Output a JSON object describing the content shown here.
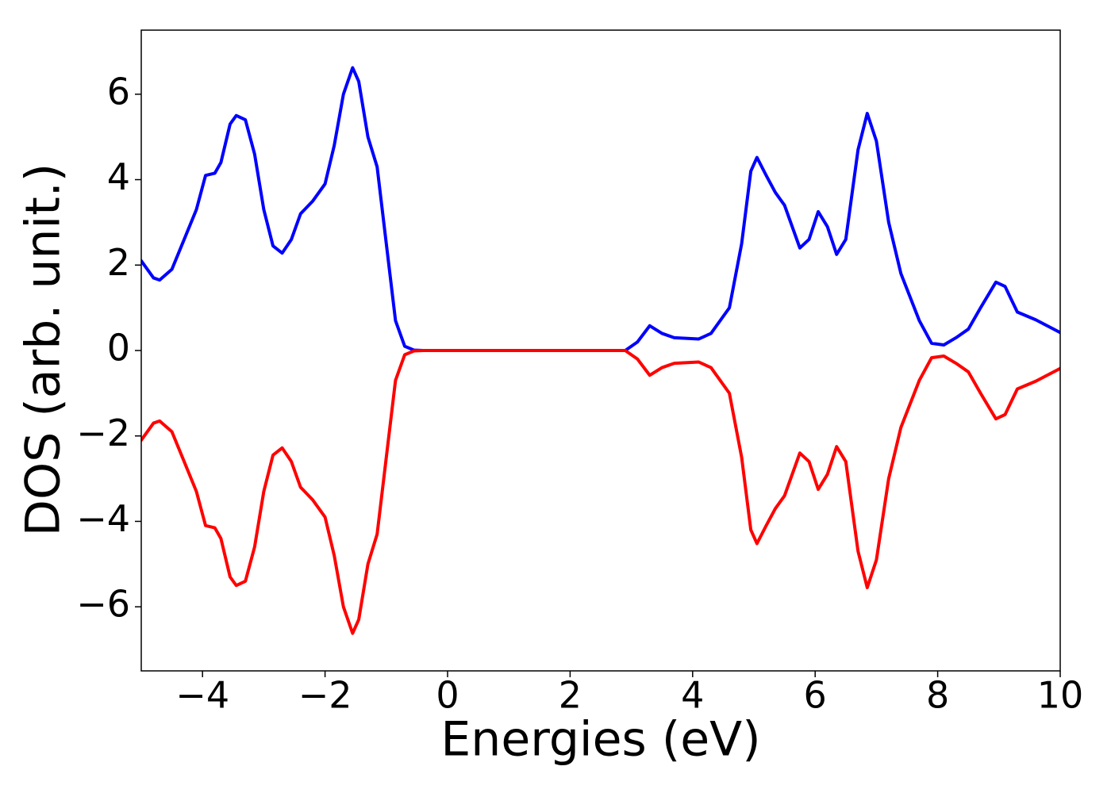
{
  "chart_data": {
    "type": "line",
    "xlabel": "Energies (eV)",
    "ylabel": "DOS (arb. unit.)",
    "x": [
      -5,
      -4.8,
      -4.7,
      -4.5,
      -4.3,
      -4.1,
      -3.95,
      -3.8,
      -3.7,
      -3.55,
      -3.45,
      -3.3,
      -3.15,
      -3.0,
      -2.85,
      -2.7,
      -2.55,
      -2.4,
      -2.2,
      -2.0,
      -1.85,
      -1.7,
      -1.55,
      -1.45,
      -1.3,
      -1.15,
      -1.0,
      -0.85,
      -0.7,
      -0.55,
      -0.4,
      1.0,
      2.9,
      3.1,
      3.3,
      3.5,
      3.7,
      4.1,
      4.3,
      4.6,
      4.8,
      4.95,
      5.05,
      5.2,
      5.35,
      5.5,
      5.75,
      5.9,
      6.05,
      6.2,
      6.35,
      6.5,
      6.7,
      6.85,
      7.0,
      7.2,
      7.4,
      7.7,
      7.9,
      8.1,
      8.3,
      8.5,
      8.7,
      8.95,
      9.1,
      9.3,
      9.6,
      10
    ],
    "series": [
      {
        "color": "#0000ff",
        "values": [
          2.1,
          1.7,
          1.65,
          1.9,
          2.6,
          3.3,
          4.1,
          4.15,
          4.4,
          5.3,
          5.5,
          5.4,
          4.6,
          3.3,
          2.45,
          2.28,
          2.6,
          3.2,
          3.5,
          3.9,
          4.8,
          6.0,
          6.62,
          6.3,
          5.0,
          4.3,
          2.5,
          0.7,
          0.1,
          0.01,
          0,
          0,
          0,
          0.2,
          0.58,
          0.4,
          0.3,
          0.27,
          0.4,
          1.0,
          2.5,
          4.2,
          4.52,
          4.1,
          3.7,
          3.4,
          2.4,
          2.6,
          3.25,
          2.9,
          2.25,
          2.6,
          4.7,
          5.55,
          4.9,
          3.0,
          1.8,
          0.7,
          0.17,
          0.13,
          0.3,
          0.5,
          1.0,
          1.6,
          1.5,
          0.9,
          0.72,
          0.42
        ]
      },
      {
        "color": "#ff0000",
        "values": [
          -2.1,
          -1.7,
          -1.65,
          -1.9,
          -2.6,
          -3.3,
          -4.1,
          -4.15,
          -4.4,
          -5.3,
          -5.5,
          -5.4,
          -4.6,
          -3.3,
          -2.45,
          -2.28,
          -2.6,
          -3.2,
          -3.5,
          -3.9,
          -4.8,
          -6.0,
          -6.62,
          -6.3,
          -5.0,
          -4.3,
          -2.5,
          -0.7,
          -0.1,
          -0.01,
          0,
          0,
          0,
          -0.2,
          -0.58,
          -0.4,
          -0.3,
          -0.27,
          -0.4,
          -1.0,
          -2.5,
          -4.2,
          -4.52,
          -4.1,
          -3.7,
          -3.4,
          -2.4,
          -2.6,
          -3.25,
          -2.9,
          -2.25,
          -2.6,
          -4.7,
          -5.55,
          -4.9,
          -3.0,
          -1.8,
          -0.7,
          -0.17,
          -0.13,
          -0.3,
          -0.5,
          -1.0,
          -1.6,
          -1.5,
          -0.9,
          -0.72,
          -0.42
        ]
      }
    ],
    "xlim": [
      -5,
      10
    ],
    "ylim": [
      -7.5,
      7.5
    ],
    "xticks": [
      {
        "value": -4,
        "label": "−4"
      },
      {
        "value": -2,
        "label": "−2"
      },
      0,
      2,
      4,
      6,
      8,
      10
    ],
    "yticks": [
      {
        "value": -6,
        "label": "−6"
      },
      {
        "value": -4,
        "label": "−4"
      },
      {
        "value": -2,
        "label": "−2"
      },
      0,
      2,
      4,
      6
    ],
    "grid": false
  }
}
